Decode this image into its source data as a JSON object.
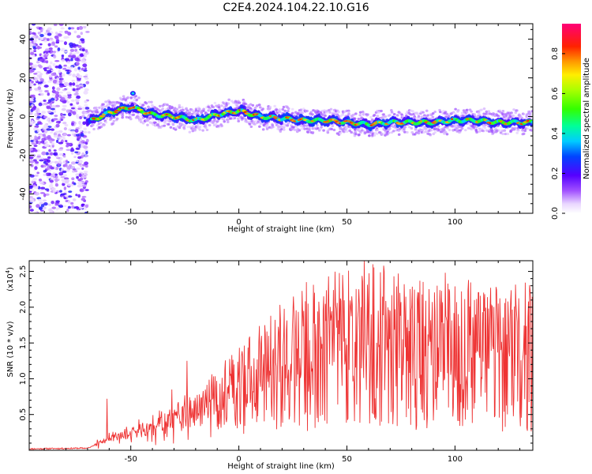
{
  "figure": {
    "title": "C2E4.2024.104.22.10.G16"
  },
  "chart_data": [
    {
      "type": "heatmap",
      "title": "C2E4.2024.104.22.10.G16",
      "xlabel": "Height of straight line (km)",
      "ylabel": "Frequency (Hz)",
      "xlim": [
        -97,
        136
      ],
      "ylim": [
        -50,
        48
      ],
      "xticks": [
        -50,
        0,
        50,
        100
      ],
      "yticks": [
        40,
        20,
        0,
        -20,
        -40
      ],
      "colorbar": {
        "label": "Normalized spectral amplitude",
        "range": [
          0.0,
          0.95
        ],
        "ticks": [
          0.0,
          0.2,
          0.4,
          0.6,
          0.8
        ]
      },
      "ridge": {
        "description": "Spectral ridge near 0 Hz",
        "x": [
          -70,
          -60,
          -50,
          -40,
          -30,
          -20,
          -10,
          0,
          10,
          20,
          30,
          40,
          50,
          60,
          70,
          80,
          90,
          100,
          110,
          120,
          135
        ],
        "freq": [
          -3,
          2,
          5,
          1,
          0,
          -2,
          1,
          3,
          0,
          -1,
          -2,
          -2,
          -3,
          -4,
          -3,
          -3,
          -3,
          -2,
          -2,
          -3,
          -3
        ]
      },
      "noise_region_end_km": -70
    },
    {
      "type": "line",
      "xlabel": "Height of straight line (km)",
      "ylabel": "SNR (10 * v/v)",
      "y_multiplier": "(x10",
      "y_multiplier_exp": "4",
      "y_multiplier_close": ")",
      "xlim": [
        -97,
        136
      ],
      "ylim": [
        0,
        2.65
      ],
      "xticks": [
        -50,
        0,
        50,
        100
      ],
      "yticks": [
        0.5,
        1.0,
        1.5,
        2.0,
        2.5
      ],
      "ytick_labels": [
        "0.5",
        "1.0",
        "1.5",
        "2.0",
        "2.5"
      ],
      "series": [
        {
          "name": "SNR",
          "color": "#ee3333",
          "x_start": -97,
          "x_step": 0.25,
          "seed": 11,
          "envelope": {
            "x": [
              -97,
              -70,
              -65,
              -55,
              -45,
              -30,
              -20,
              -10,
              0,
              10,
              20,
              30,
              40,
              50,
              60,
              70,
              80,
              90,
              100,
              110,
              120,
              136
            ],
            "y": [
              0.02,
              0.03,
              0.1,
              0.2,
              0.28,
              0.4,
              0.55,
              0.7,
              0.88,
              1.05,
              1.2,
              1.3,
              1.38,
              1.4,
              1.42,
              1.42,
              1.4,
              1.38,
              1.38,
              1.36,
              1.32,
              1.3
            ]
          },
          "peaks": [
            {
              "x": 58,
              "y": 2.65
            },
            {
              "x": 62,
              "y": 2.6
            },
            {
              "x": 67,
              "y": 2.58
            },
            {
              "x": 48,
              "y": 2.45
            },
            {
              "x": 32,
              "y": 2.05
            },
            {
              "x": -24,
              "y": 1.25
            },
            {
              "x": -61,
              "y": 0.72
            },
            {
              "x": -31,
              "y": 0.85
            }
          ]
        }
      ]
    }
  ],
  "colors": {
    "line": "#ee3333",
    "axis": "#000000"
  }
}
